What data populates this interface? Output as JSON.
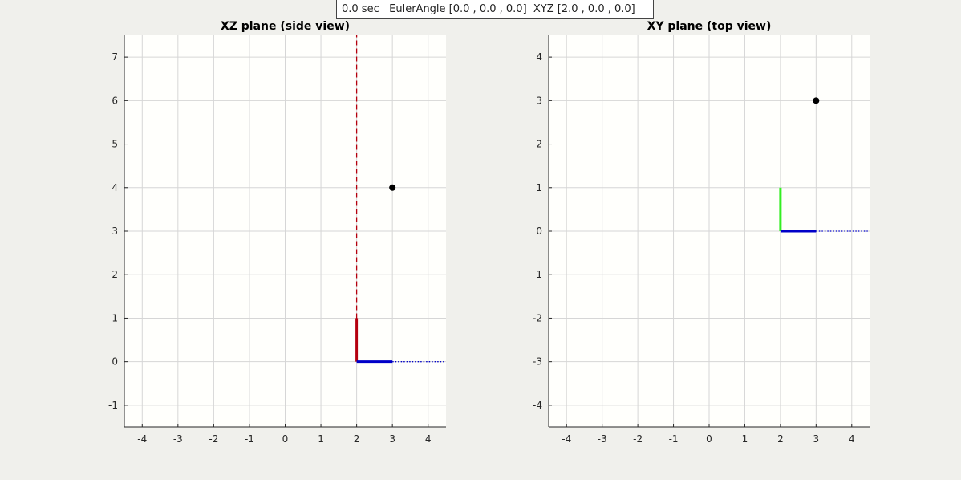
{
  "info": {
    "time": "0.0 sec",
    "euler": "EulerAngle [0.0 , 0.0 , 0.0]",
    "xyz": "XYZ [2.0 , 0.0 , 0.0]"
  },
  "colors": {
    "red": "#b5000e",
    "blue": "#0000c8",
    "green": "#33ee22",
    "point": "#000000",
    "grid": "#d6d6d6",
    "axes_bg": "#fffffc"
  },
  "chart_data": [
    {
      "type": "line",
      "title": "XZ plane (side view)",
      "xlabel": "",
      "ylabel": "",
      "xlim": [
        -4.5,
        4.5
      ],
      "ylim": [
        -1.5,
        7.5
      ],
      "xticks": [
        -4,
        -3,
        -2,
        -1,
        0,
        1,
        2,
        3,
        4
      ],
      "yticks": [
        -1,
        0,
        1,
        2,
        3,
        4,
        5,
        6,
        7
      ],
      "grid": true,
      "series": [
        {
          "kind": "segment",
          "color": "red",
          "style": "solid",
          "width": "thick",
          "x": [
            2,
            2
          ],
          "y": [
            0,
            1
          ]
        },
        {
          "kind": "segment",
          "color": "blue",
          "style": "solid",
          "width": "thick",
          "x": [
            2,
            3
          ],
          "y": [
            0,
            0
          ]
        },
        {
          "kind": "segment",
          "color": "blue",
          "style": "dotted",
          "width": "thin",
          "x": [
            3,
            4.45
          ],
          "y": [
            0,
            0
          ]
        },
        {
          "kind": "segment",
          "color": "red",
          "style": "dashed",
          "width": "thin",
          "x": [
            2,
            2
          ],
          "y": [
            1,
            7.5
          ]
        },
        {
          "kind": "point",
          "color": "point",
          "x": [
            3
          ],
          "y": [
            4
          ]
        }
      ]
    },
    {
      "type": "line",
      "title": "XY plane (top view)",
      "xlabel": "",
      "ylabel": "",
      "xlim": [
        -4.5,
        4.5
      ],
      "ylim": [
        -4.5,
        4.5
      ],
      "xticks": [
        -4,
        -3,
        -2,
        -1,
        0,
        1,
        2,
        3,
        4
      ],
      "yticks": [
        -4,
        -3,
        -2,
        -1,
        0,
        1,
        2,
        3,
        4
      ],
      "grid": true,
      "series": [
        {
          "kind": "segment",
          "color": "green",
          "style": "solid",
          "width": "thick",
          "x": [
            2,
            2
          ],
          "y": [
            0,
            1
          ]
        },
        {
          "kind": "segment",
          "color": "blue",
          "style": "solid",
          "width": "thick",
          "x": [
            2,
            3
          ],
          "y": [
            0,
            0
          ]
        },
        {
          "kind": "segment",
          "color": "blue",
          "style": "dotted",
          "width": "thin",
          "x": [
            3,
            4.45
          ],
          "y": [
            0,
            0
          ]
        },
        {
          "kind": "point",
          "color": "point",
          "x": [
            3
          ],
          "y": [
            3
          ]
        }
      ]
    }
  ]
}
